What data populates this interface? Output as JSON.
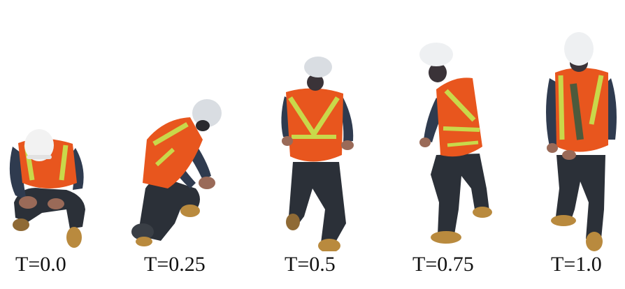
{
  "figure": {
    "frames": [
      {
        "label": "T=0.0"
      },
      {
        "label": "T=0.25"
      },
      {
        "label": "T=0.5"
      },
      {
        "label": "T=0.75"
      },
      {
        "label": "T=1.0"
      }
    ]
  },
  "colors": {
    "vest": "#e8561e",
    "reflective_stripe": "#c9d84a",
    "helmet": "#f2f2f2",
    "shirt": "#2f3b4f",
    "pants": "#2b3038",
    "boots": "#b98a3e",
    "skin": "#9a6a58"
  }
}
